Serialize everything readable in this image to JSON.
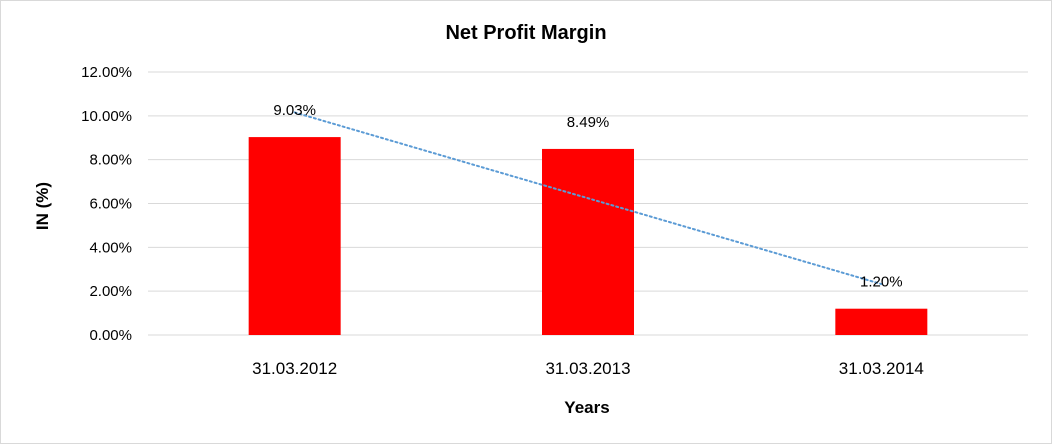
{
  "chart_data": {
    "type": "bar",
    "title": "Net Profit Margin",
    "xlabel": "Years",
    "ylabel": "IN (%)",
    "categories": [
      "31.03.2012",
      "31.03.2013",
      "31.03.2014"
    ],
    "series": [
      {
        "values": [
          9.03,
          8.49,
          1.2
        ],
        "color": "#ff0000"
      }
    ],
    "data_labels": [
      "9.03%",
      "8.49%",
      "1.20%"
    ],
    "ylim": [
      0,
      12
    ],
    "yticks": [
      0,
      2,
      4,
      6,
      8,
      10,
      12
    ],
    "ytick_labels": [
      "0.00%",
      "2.00%",
      "4.00%",
      "6.00%",
      "8.00%",
      "10.00%",
      "12.00%"
    ],
    "trendline": {
      "type": "linear",
      "style": "dotted",
      "color": "#5b9bd5"
    },
    "grid": true,
    "legend": "none"
  }
}
